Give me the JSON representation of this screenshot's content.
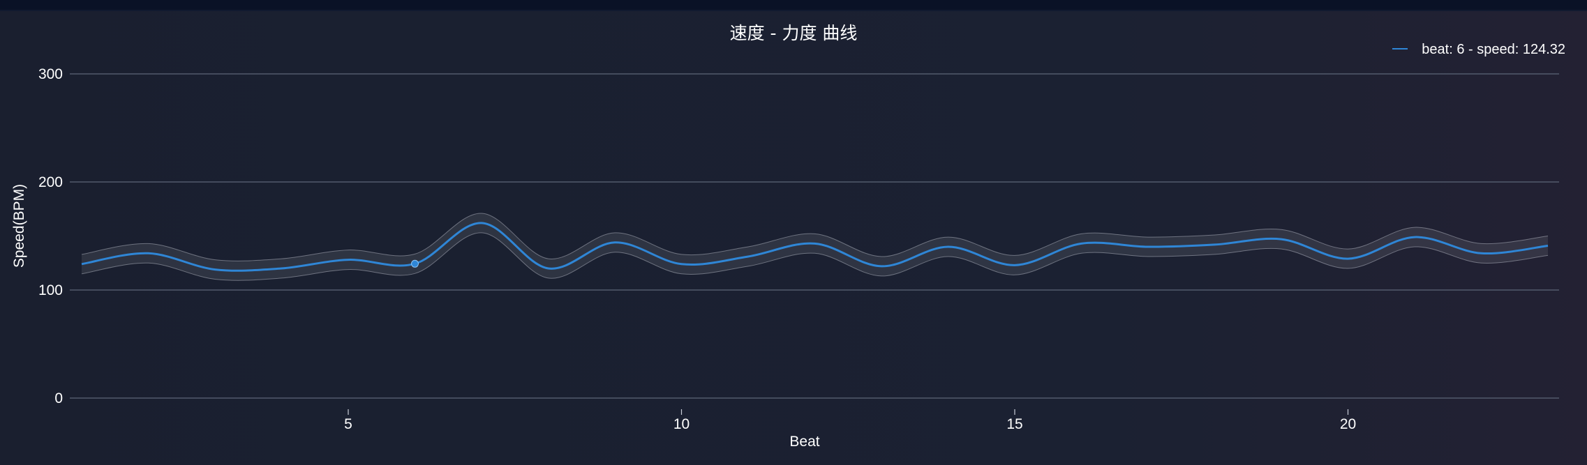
{
  "chart_data": {
    "type": "line",
    "title": "速度 - 力度 曲线",
    "xlabel": "Beat",
    "ylabel": "Speed(BPM)",
    "xlim": [
      1,
      23
    ],
    "ylim": [
      0,
      300
    ],
    "x_ticks": [
      5,
      10,
      15,
      20
    ],
    "y_ticks": [
      0,
      100,
      200,
      300
    ],
    "grid": "horizontal",
    "legend_position": "top-right",
    "legend_text": "beat: 6 - speed: 124.32",
    "band_halfwidth": 9,
    "highlight_point": {
      "x": 6,
      "y": 124.32
    },
    "series": [
      {
        "x": [
          1,
          2,
          3,
          4,
          5,
          6,
          7,
          8,
          9,
          10,
          11,
          12,
          13,
          14,
          15,
          16,
          17,
          18,
          19,
          20,
          21,
          22,
          23
        ],
        "y": [
          124,
          134,
          119,
          120,
          128,
          124.32,
          162,
          120,
          144,
          124,
          131,
          143,
          122,
          140,
          123,
          143,
          140,
          142,
          147,
          129,
          149,
          134,
          141
        ]
      }
    ],
    "colors": {
      "line": "#2f86d6",
      "band": "rgba(255,255,255,0.09)",
      "band_edge": "rgba(200,205,215,0.45)"
    }
  }
}
